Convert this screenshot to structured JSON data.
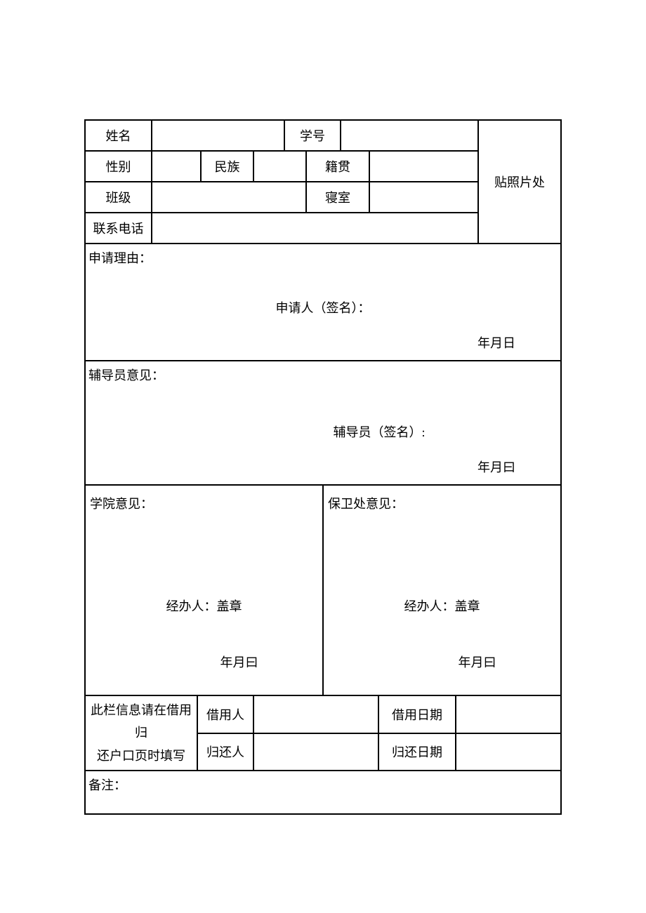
{
  "colors": {
    "background": "#ffffff",
    "border": "#000000",
    "text": "#000000"
  },
  "typography": {
    "font_family": "SimSun",
    "base_fontsize": 18
  },
  "form": {
    "row1": {
      "name_label": "姓名",
      "name_value": "",
      "student_id_label": "学号",
      "student_id_value": ""
    },
    "row2": {
      "gender_label": "性别",
      "gender_value": "",
      "ethnicity_label": "民族",
      "ethnicity_value": "",
      "native_place_label": "籍贯",
      "native_place_value": ""
    },
    "row3": {
      "class_label": "班级",
      "class_value": "",
      "dorm_label": "寝室",
      "dorm_value": ""
    },
    "row4": {
      "phone_label": "联系电话",
      "phone_value": ""
    },
    "photo_label": "贴照片处",
    "reason": {
      "label": "申请理由：",
      "applicant_sign": "申请人（签名）：",
      "date": "年月日"
    },
    "counselor": {
      "label": "辅导员意见：",
      "sign": "辅导员（签名）:",
      "date": "年月曰"
    },
    "college": {
      "label": "学院意见：",
      "handler": "经办人：盖章",
      "date": "年月曰"
    },
    "security": {
      "label": "保卫处意见：",
      "handler": "经办人：盖章",
      "date": "年月曰"
    },
    "borrow": {
      "note_line1": "此栏信息请在借用归",
      "note_line2": "还户口页时填写",
      "borrower_label": "借用人",
      "borrower_value": "",
      "borrow_date_label": "借用日期",
      "borrow_date_value": "",
      "returner_label": "归还人",
      "returner_value": "",
      "return_date_label": "归还日期",
      "return_date_value": ""
    },
    "remarks": {
      "label": "备注："
    }
  }
}
